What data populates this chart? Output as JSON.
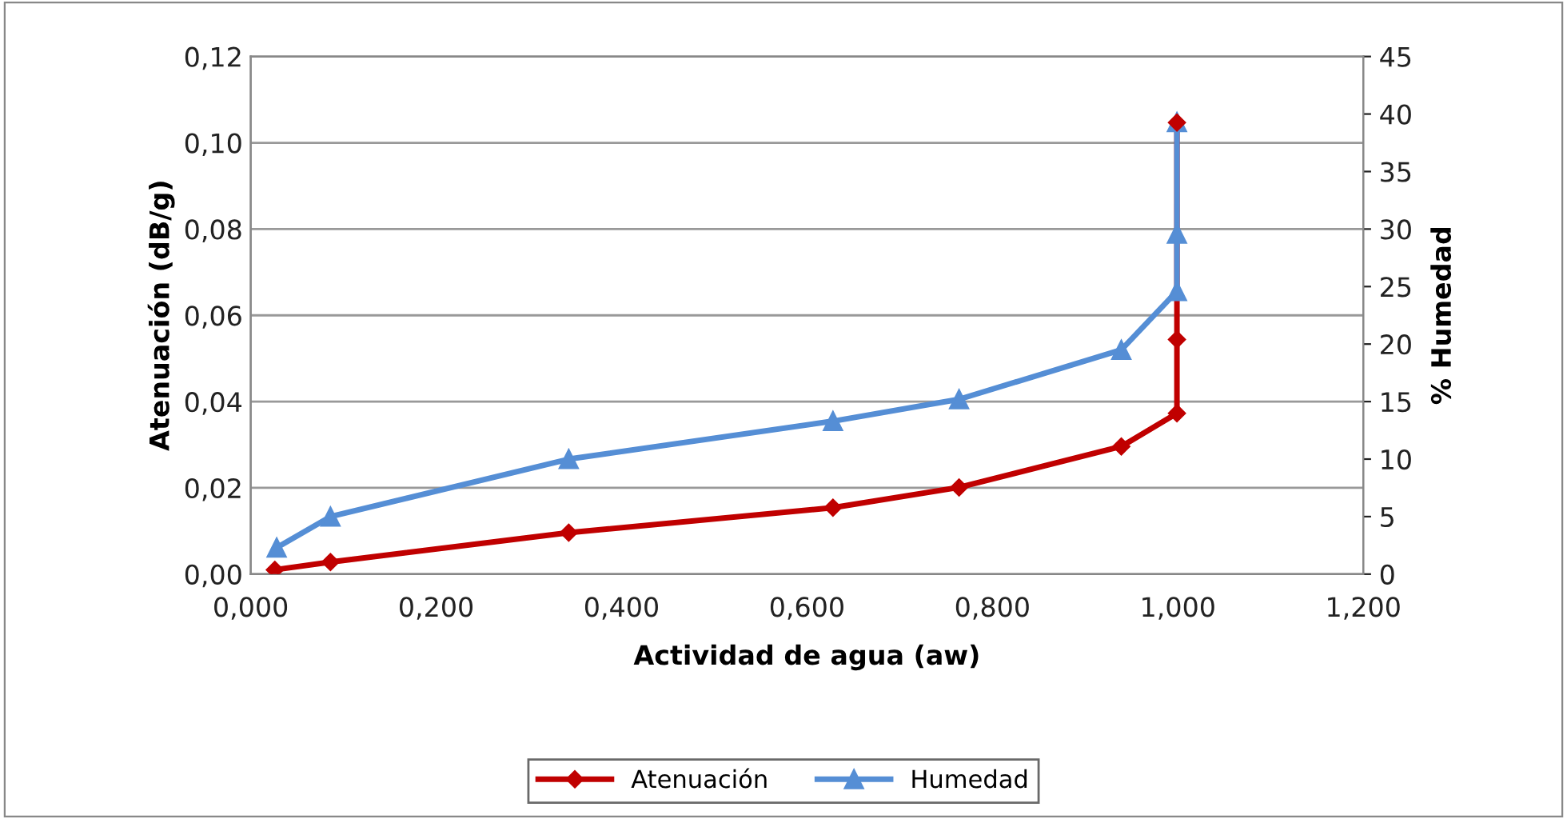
{
  "chart_data": {
    "type": "line",
    "xlabel": "Actividad de agua (aw)",
    "ylabel": "Atenuación (dB/g)",
    "y2label": "% Humedad",
    "xlim": [
      0,
      1.2
    ],
    "xticks": [
      {
        "value": 0,
        "label": "0,000"
      },
      {
        "value": 0.2,
        "label": "0,200"
      },
      {
        "value": 0.4,
        "label": "0,400"
      },
      {
        "value": 0.6,
        "label": "0,600"
      },
      {
        "value": 0.8,
        "label": "0,800"
      },
      {
        "value": 1.0,
        "label": "1,000"
      },
      {
        "value": 1.2,
        "label": "1,200"
      }
    ],
    "ylim": [
      0,
      0.12
    ],
    "yticks": [
      {
        "value": 0,
        "label": "0,00"
      },
      {
        "value": 0.02,
        "label": "0,02"
      },
      {
        "value": 0.04,
        "label": "0,04"
      },
      {
        "value": 0.06,
        "label": "0,06"
      },
      {
        "value": 0.08,
        "label": "0,08"
      },
      {
        "value": 0.1,
        "label": "0,10"
      },
      {
        "value": 0.12,
        "label": "0,12"
      }
    ],
    "y2lim": [
      0,
      45
    ],
    "y2ticks": [
      0,
      5,
      10,
      15,
      20,
      25,
      30,
      35,
      40,
      45
    ],
    "grid": "y",
    "legend": "bottom",
    "series": [
      {
        "name": "Atenuación",
        "color": "#c00000",
        "marker": "diamond",
        "x": [
          0.026,
          0.086,
          0.343,
          0.628,
          0.764,
          0.939,
          0.999,
          0.999,
          0.999
        ],
        "values": [
          0.001,
          0.0028,
          0.0096,
          0.0154,
          0.0201,
          0.0296,
          0.0373,
          0.0544,
          0.1047
        ]
      },
      {
        "name": "Humedad",
        "color": "#558ed5",
        "marker": "triangle",
        "axis": "y2",
        "x": [
          0.028,
          0.086,
          0.343,
          0.628,
          0.764,
          0.939,
          0.999,
          0.999,
          0.999
        ],
        "values": [
          2.3,
          5.0,
          10.0,
          13.3,
          15.2,
          19.5,
          24.6,
          29.6,
          39.3
        ]
      }
    ]
  }
}
